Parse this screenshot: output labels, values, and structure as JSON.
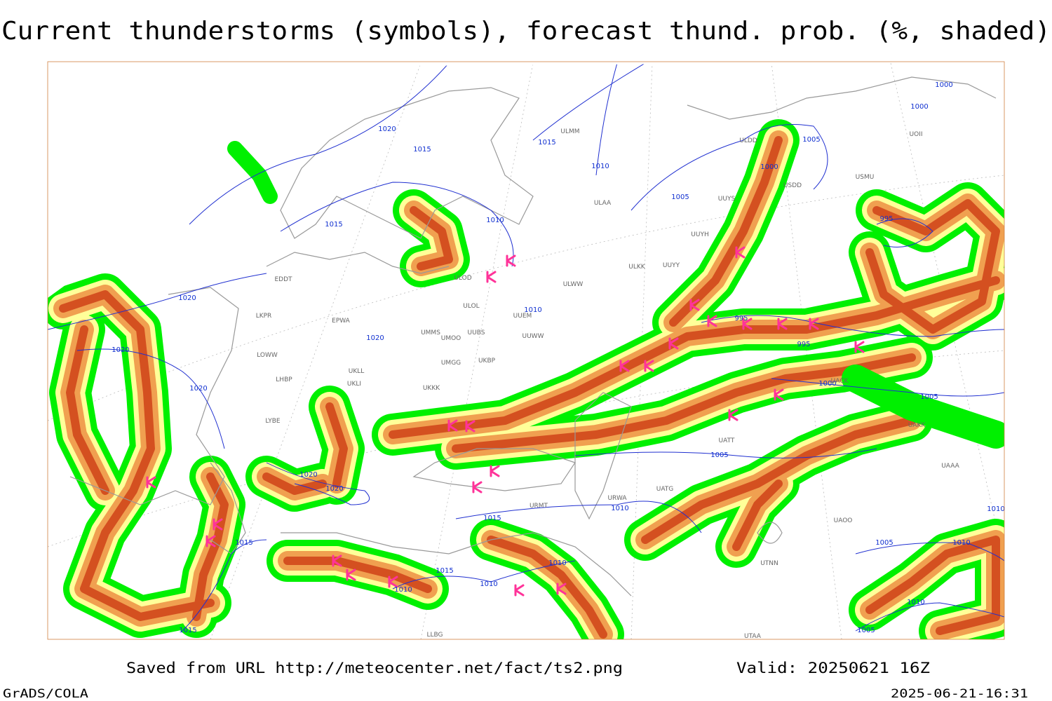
{
  "header": {
    "title": "Current thunderstorms (symbols), forecast thund. prob. (%, shaded)"
  },
  "map": {
    "isobar_labels": [
      1020,
      1015,
      1015,
      1010,
      1005,
      1000,
      1005,
      1000,
      1000,
      1015,
      1010,
      1020,
      1010,
      1020,
      1020,
      1020,
      995,
      995,
      995,
      1000,
      1005,
      1005,
      1020,
      1020,
      1015,
      1010,
      1015,
      1015,
      1010,
      1010,
      1010,
      1005,
      1010,
      1010,
      1005,
      1015,
      1010
    ],
    "station_labels": [
      "ULMM",
      "ULDD",
      "USDD",
      "USMU",
      "UOII",
      "ULAA",
      "UUYS",
      "UUYH",
      "ULKK",
      "UUYY",
      "ULWW",
      "ULOD",
      "EDDT",
      "ULOL",
      "UUEM",
      "EPWA",
      "LKPR",
      "UMMS",
      "UUBS",
      "UMOO",
      "UUWW",
      "LOWW",
      "UMGG",
      "UKBP",
      "UKLL",
      "UKLI",
      "LHBP",
      "LYBE",
      "UKKK",
      "UATT",
      "UATG",
      "URWA",
      "URMT",
      "UTNN",
      "UAOO",
      "UACK",
      "UAKK",
      "UTAA",
      "LLBG",
      "UAAA"
    ]
  },
  "footer": {
    "source": "Saved from URL http://meteocenter.net/fact/ts2.png",
    "valid": "Valid: 20250621 16Z",
    "software": "GrADS/COLA",
    "timestamp": "2025-06-21-16:31"
  }
}
